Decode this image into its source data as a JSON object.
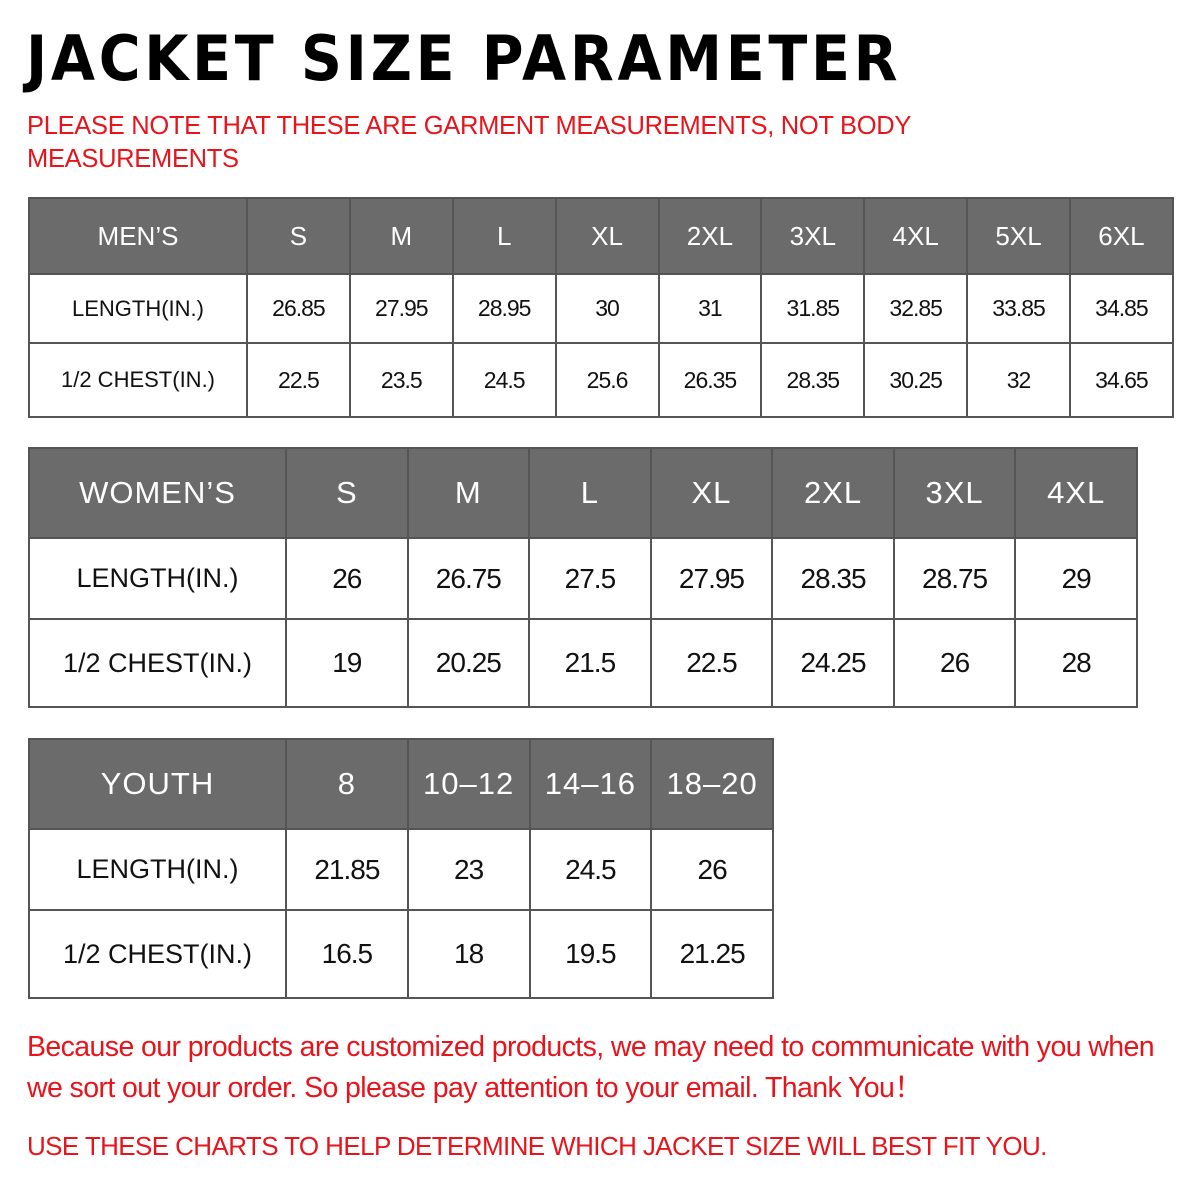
{
  "title": "JACKET SIZE PARAMETER",
  "note": "PLEASE NOTE THAT THESE ARE GARMENT MEASUREMENTS, NOT BODY MEASUREMENTS",
  "mens": {
    "header": [
      "MEN’S",
      "S",
      "M",
      "L",
      "XL",
      "2XL",
      "3XL",
      "4XL",
      "5XL",
      "6XL"
    ],
    "rows": [
      [
        "LENGTH(IN.)",
        "26.85",
        "27.95",
        "28.95",
        "30",
        "31",
        "31.85",
        "32.85",
        "33.85",
        "34.85"
      ],
      [
        "1/2 CHEST(IN.)",
        "22.5",
        "23.5",
        "24.5",
        "25.6",
        "26.35",
        "28.35",
        "30.25",
        "32",
        "34.65"
      ]
    ]
  },
  "womens": {
    "header": [
      "WOMEN’S",
      "S",
      "M",
      "L",
      "XL",
      "2XL",
      "3XL",
      "4XL"
    ],
    "rows": [
      [
        "LENGTH(IN.)",
        "26",
        "26.75",
        "27.5",
        "27.95",
        "28.35",
        "28.75",
        "29"
      ],
      [
        "1/2 CHEST(IN.)",
        "19",
        "20.25",
        "21.5",
        "22.5",
        "24.25",
        "26",
        "28"
      ]
    ]
  },
  "youth": {
    "header": [
      "YOUTH",
      "8",
      "10–12",
      "14–16",
      "18–20"
    ],
    "rows": [
      [
        "LENGTH(IN.)",
        "21.85",
        "23",
        "24.5",
        "26"
      ],
      [
        "1/2 CHEST(IN.)",
        "16.5",
        "18",
        "19.5",
        "21.25"
      ]
    ]
  },
  "footer": {
    "message": "Because our products are customized products, we may need to communicate with you when we sort out your order. So please pay attention to your email. Thank You！",
    "advice": "USE THESE CHARTS TO HELP DETERMINE WHICH JACKET SIZE WILL BEST FIT YOU."
  },
  "colors": {
    "header_bg": "#6b6b6b",
    "accent_red": "#e8141b"
  }
}
